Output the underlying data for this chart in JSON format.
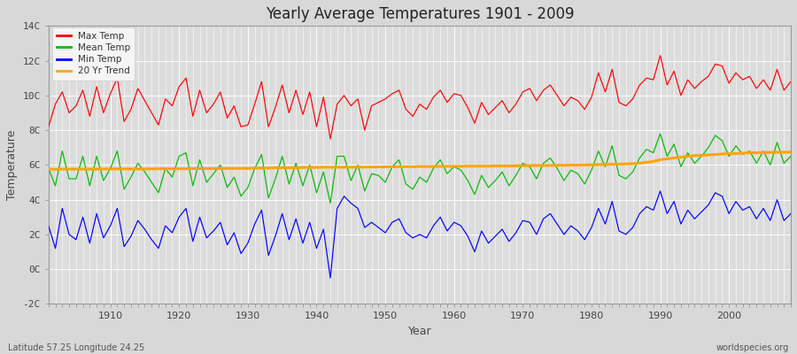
{
  "title": "Yearly Average Temperatures 1901 - 2009",
  "xlabel": "Year",
  "ylabel": "Temperature",
  "footer_left": "Latitude 57.25 Longitude 24.25",
  "footer_right": "worldspecies.org",
  "xlim": [
    1901,
    2009
  ],
  "ylim": [
    -2,
    14
  ],
  "yticks": [
    -2,
    0,
    2,
    4,
    6,
    8,
    10,
    12,
    14
  ],
  "ytick_labels": [
    "-2C",
    "0C",
    "2C",
    "4C",
    "6C",
    "8C",
    "10C",
    "12C",
    "14C"
  ],
  "xticks": [
    1910,
    1920,
    1930,
    1940,
    1950,
    1960,
    1970,
    1980,
    1990,
    2000
  ],
  "bg_color": "#d8d8d8",
  "plot_bg_color": "#dcdcdc",
  "grid_color": "#ffffff",
  "line_colors": {
    "max": "#ff0000",
    "mean": "#00bb00",
    "min": "#0000ff",
    "trend": "#ffa500"
  },
  "years": [
    1901,
    1902,
    1903,
    1904,
    1905,
    1906,
    1907,
    1908,
    1909,
    1910,
    1911,
    1912,
    1913,
    1914,
    1915,
    1916,
    1917,
    1918,
    1919,
    1920,
    1921,
    1922,
    1923,
    1924,
    1925,
    1926,
    1927,
    1928,
    1929,
    1930,
    1931,
    1932,
    1933,
    1934,
    1935,
    1936,
    1937,
    1938,
    1939,
    1940,
    1941,
    1942,
    1943,
    1944,
    1945,
    1946,
    1947,
    1948,
    1949,
    1950,
    1951,
    1952,
    1953,
    1954,
    1955,
    1956,
    1957,
    1958,
    1959,
    1960,
    1961,
    1962,
    1963,
    1964,
    1965,
    1966,
    1967,
    1968,
    1969,
    1970,
    1971,
    1972,
    1973,
    1974,
    1975,
    1976,
    1977,
    1978,
    1979,
    1980,
    1981,
    1982,
    1983,
    1984,
    1985,
    1986,
    1987,
    1988,
    1989,
    1990,
    1991,
    1992,
    1993,
    1994,
    1995,
    1996,
    1997,
    1998,
    1999,
    2000,
    2001,
    2002,
    2003,
    2004,
    2005,
    2006,
    2007,
    2008,
    2009
  ],
  "max_temp": [
    8.2,
    9.5,
    10.2,
    9.0,
    9.4,
    10.3,
    8.8,
    10.5,
    9.0,
    10.1,
    11.0,
    8.5,
    9.2,
    10.4,
    9.7,
    9.0,
    8.3,
    9.8,
    9.4,
    10.5,
    11.0,
    8.8,
    10.3,
    9.0,
    9.5,
    10.2,
    8.7,
    9.4,
    8.2,
    8.3,
    9.5,
    10.8,
    8.2,
    9.3,
    10.6,
    9.0,
    10.3,
    8.9,
    10.2,
    8.2,
    9.9,
    7.5,
    9.5,
    10.0,
    9.4,
    9.8,
    8.0,
    9.4,
    9.6,
    9.8,
    10.1,
    10.3,
    9.2,
    8.8,
    9.5,
    9.2,
    9.9,
    10.3,
    9.6,
    10.1,
    10.0,
    9.3,
    8.4,
    9.6,
    8.9,
    9.3,
    9.7,
    9.0,
    9.5,
    10.2,
    10.4,
    9.7,
    10.3,
    10.6,
    10.0,
    9.4,
    9.9,
    9.7,
    9.2,
    9.9,
    11.3,
    10.2,
    11.5,
    9.6,
    9.4,
    9.8,
    10.6,
    11.0,
    10.9,
    12.3,
    10.6,
    11.4,
    10.0,
    10.9,
    10.4,
    10.8,
    11.1,
    11.8,
    11.7,
    10.7,
    11.3,
    10.9,
    11.1,
    10.4,
    10.9,
    10.3,
    11.5,
    10.3,
    10.8
  ],
  "mean_temp": [
    5.8,
    4.8,
    6.8,
    5.2,
    5.2,
    6.5,
    4.8,
    6.5,
    5.1,
    5.8,
    6.8,
    4.6,
    5.3,
    6.1,
    5.6,
    5.0,
    4.4,
    5.8,
    5.3,
    6.5,
    6.7,
    4.8,
    6.3,
    5.0,
    5.5,
    6.0,
    4.7,
    5.3,
    4.2,
    4.7,
    5.8,
    6.6,
    4.1,
    5.2,
    6.5,
    4.9,
    6.1,
    4.8,
    6.0,
    4.4,
    5.6,
    3.8,
    6.5,
    6.5,
    5.1,
    6.0,
    4.5,
    5.5,
    5.4,
    5.0,
    5.9,
    6.3,
    4.9,
    4.6,
    5.3,
    5.0,
    5.8,
    6.3,
    5.5,
    5.9,
    5.7,
    5.1,
    4.3,
    5.4,
    4.7,
    5.1,
    5.6,
    4.8,
    5.4,
    6.1,
    5.9,
    5.2,
    6.1,
    6.4,
    5.8,
    5.1,
    5.7,
    5.5,
    4.9,
    5.7,
    6.8,
    5.9,
    7.1,
    5.4,
    5.2,
    5.6,
    6.4,
    6.9,
    6.7,
    7.8,
    6.5,
    7.2,
    5.9,
    6.7,
    6.1,
    6.5,
    7.0,
    7.7,
    7.4,
    6.5,
    7.1,
    6.6,
    6.8,
    6.1,
    6.8,
    6.0,
    7.3,
    6.1,
    6.5
  ],
  "min_temp": [
    2.5,
    1.2,
    3.5,
    2.0,
    1.7,
    3.0,
    1.5,
    3.2,
    1.8,
    2.5,
    3.5,
    1.3,
    1.9,
    2.8,
    2.3,
    1.7,
    1.2,
    2.5,
    2.1,
    3.0,
    3.5,
    1.6,
    3.0,
    1.8,
    2.2,
    2.7,
    1.4,
    2.1,
    0.9,
    1.5,
    2.6,
    3.4,
    0.8,
    1.9,
    3.2,
    1.7,
    2.9,
    1.5,
    2.7,
    1.2,
    2.3,
    -0.5,
    3.5,
    4.2,
    3.8,
    3.5,
    2.4,
    2.7,
    2.4,
    2.1,
    2.7,
    2.9,
    2.1,
    1.8,
    2.0,
    1.8,
    2.5,
    3.0,
    2.2,
    2.7,
    2.5,
    1.9,
    1.0,
    2.2,
    1.5,
    1.9,
    2.3,
    1.6,
    2.1,
    2.8,
    2.7,
    2.0,
    2.9,
    3.2,
    2.6,
    2.0,
    2.5,
    2.2,
    1.7,
    2.4,
    3.5,
    2.6,
    3.9,
    2.2,
    2.0,
    2.4,
    3.2,
    3.6,
    3.4,
    4.5,
    3.2,
    3.9,
    2.6,
    3.4,
    2.9,
    3.3,
    3.7,
    4.4,
    4.2,
    3.2,
    3.9,
    3.4,
    3.6,
    2.9,
    3.5,
    2.8,
    4.0,
    2.8,
    3.2
  ],
  "trend": [
    5.75,
    5.75,
    5.76,
    5.76,
    5.76,
    5.76,
    5.76,
    5.76,
    5.77,
    5.77,
    5.77,
    5.77,
    5.77,
    5.77,
    5.77,
    5.77,
    5.78,
    5.78,
    5.78,
    5.78,
    5.78,
    5.79,
    5.79,
    5.79,
    5.79,
    5.8,
    5.8,
    5.8,
    5.8,
    5.8,
    5.82,
    5.82,
    5.82,
    5.84,
    5.84,
    5.84,
    5.84,
    5.86,
    5.86,
    5.86,
    5.87,
    5.87,
    5.87,
    5.87,
    5.87,
    5.88,
    5.88,
    5.88,
    5.89,
    5.89,
    5.9,
    5.9,
    5.9,
    5.9,
    5.91,
    5.91,
    5.91,
    5.92,
    5.92,
    5.92,
    5.92,
    5.93,
    5.93,
    5.93,
    5.93,
    5.94,
    5.94,
    5.94,
    5.95,
    5.96,
    5.96,
    5.97,
    5.97,
    5.97,
    5.98,
    5.98,
    5.99,
    5.99,
    6.0,
    6.01,
    6.02,
    6.03,
    6.04,
    6.05,
    6.06,
    6.07,
    6.1,
    6.15,
    6.2,
    6.3,
    6.35,
    6.4,
    6.44,
    6.5,
    6.54,
    6.55,
    6.58,
    6.6,
    6.63,
    6.65,
    6.65,
    6.68,
    6.7,
    6.7,
    6.72,
    6.72,
    6.73,
    6.73,
    6.74
  ]
}
